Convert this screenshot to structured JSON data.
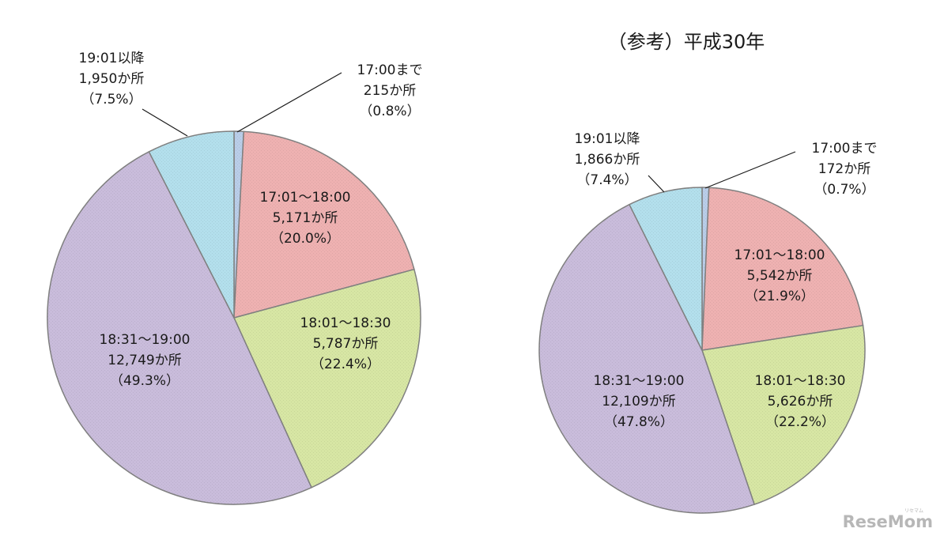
{
  "colors": {
    "17:00まで": "#b9cde8",
    "17:01〜18:00": "#eeb1b1",
    "18:01〜18:30": "#d7e6a4",
    "18:31〜19:00": "#c9bcdb",
    "19:01以降": "#b3dfec",
    "edge": "#808080"
  },
  "watermark": {
    "main": "ReseMom",
    "sub": "リセマム"
  },
  "chart_data": [
    {
      "type": "pie",
      "title": "",
      "start_angle_deg": 0,
      "direction": "clockwise",
      "slices": [
        {
          "category": "17:00まで",
          "count": 215,
          "count_label": "215か所",
          "percent": 0.8,
          "percent_label": "（0.8%）"
        },
        {
          "category": "17:01〜18:00",
          "count": 5171,
          "count_label": "5,171か所",
          "percent": 20.0,
          "percent_label": "（20.0%）"
        },
        {
          "category": "18:01〜18:30",
          "count": 5787,
          "count_label": "5,787か所",
          "percent": 22.4,
          "percent_label": "（22.4%）"
        },
        {
          "category": "18:31〜19:00",
          "count": 12749,
          "count_label": "12,749か所",
          "percent": 49.3,
          "percent_label": "（49.3%）"
        },
        {
          "category": "19:01以降",
          "count": 1950,
          "count_label": "1,950か所",
          "percent": 7.5,
          "percent_label": "（7.5%）"
        }
      ]
    },
    {
      "type": "pie",
      "title": "（参考）平成30年",
      "start_angle_deg": 0,
      "direction": "clockwise",
      "slices": [
        {
          "category": "17:00まで",
          "count": 172,
          "count_label": "172か所",
          "percent": 0.7,
          "percent_label": "（0.7%）"
        },
        {
          "category": "17:01〜18:00",
          "count": 5542,
          "count_label": "5,542か所",
          "percent": 21.9,
          "percent_label": "（21.9%）"
        },
        {
          "category": "18:01〜18:30",
          "count": 5626,
          "count_label": "5,626か所",
          "percent": 22.2,
          "percent_label": "（22.2%）"
        },
        {
          "category": "18:31〜19:00",
          "count": 12109,
          "count_label": "12,109か所",
          "percent": 47.8,
          "percent_label": "（47.8%）"
        },
        {
          "category": "19:01以降",
          "count": 1866,
          "count_label": "1,866か所",
          "percent": 7.4,
          "percent_label": "（7.4%）"
        }
      ]
    }
  ]
}
